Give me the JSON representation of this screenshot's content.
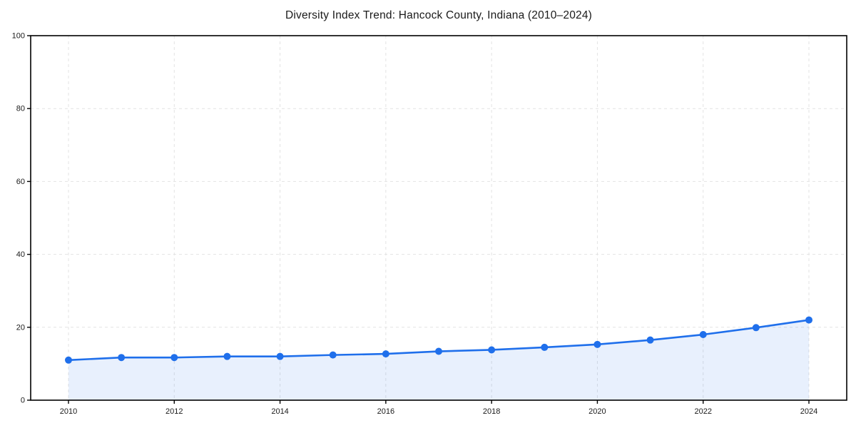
{
  "chart_data": {
    "type": "area",
    "title": "Diversity Index Trend: Hancock County, Indiana (2010–2024)",
    "x": [
      2010,
      2011,
      2012,
      2013,
      2014,
      2015,
      2016,
      2017,
      2018,
      2019,
      2020,
      2021,
      2022,
      2023,
      2024
    ],
    "values": [
      11.0,
      11.7,
      11.7,
      12.0,
      12.0,
      12.4,
      12.7,
      13.4,
      13.8,
      14.5,
      15.3,
      16.5,
      18.0,
      19.9,
      22.0
    ],
    "xlabel": "",
    "ylabel": "",
    "xlim": [
      2010,
      2024
    ],
    "ylim": [
      0,
      100
    ],
    "x_tick_labels": [
      "2010",
      "2012",
      "2014",
      "2016",
      "2018",
      "2020",
      "2022",
      "2024"
    ],
    "x_tick_values": [
      2010,
      2012,
      2014,
      2016,
      2018,
      2020,
      2022,
      2024
    ],
    "y_tick_labels": [
      "0",
      "20",
      "40",
      "60",
      "80",
      "100"
    ],
    "y_tick_values": [
      0,
      20,
      40,
      60,
      80,
      100
    ],
    "grid": true,
    "grid_style": "dashed",
    "legend": "none",
    "colors": {
      "line": "#1f6feb",
      "marker": "#1f6feb",
      "area_fill": "rgba(31, 111, 235, 0.10)",
      "grid": "#e3e3e3",
      "spine": "#000000",
      "text": "#1a1a1a",
      "background": "#ffffff"
    }
  }
}
